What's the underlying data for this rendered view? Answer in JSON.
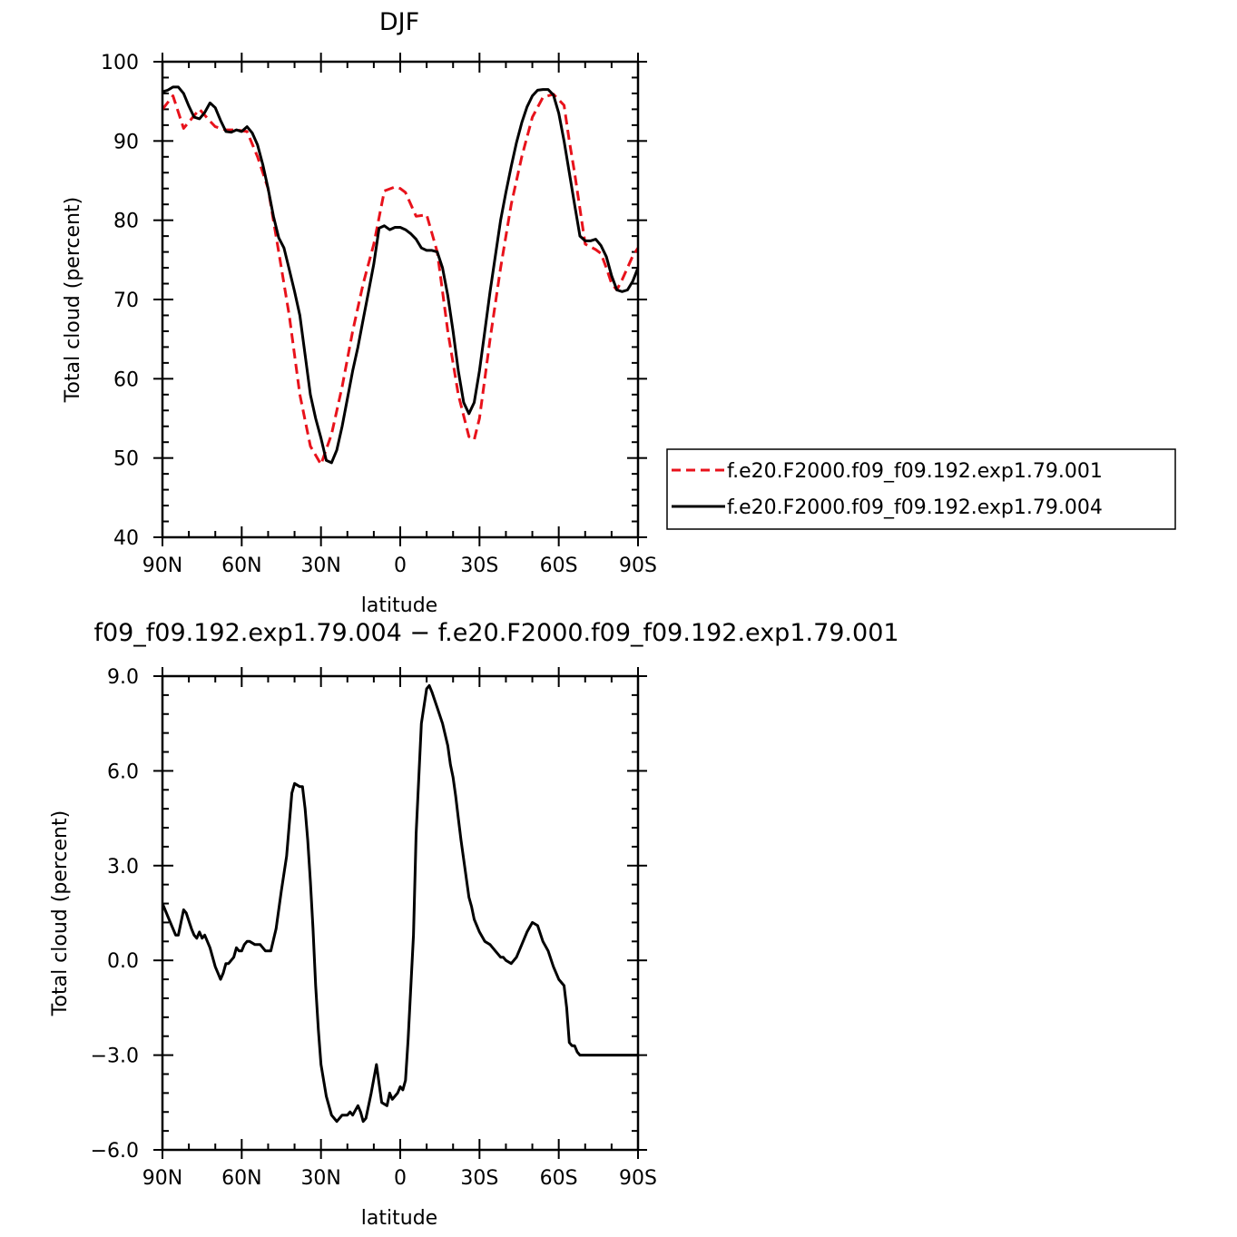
{
  "chart_data": [
    {
      "type": "line",
      "title": "DJF",
      "xlabel": "latitude",
      "ylabel": "Total cloud (percent)",
      "xlim": [
        90,
        -90
      ],
      "ylim": [
        40,
        100
      ],
      "x_ticks": [
        90,
        60,
        30,
        0,
        -30,
        -60,
        -90
      ],
      "x_tick_labels": [
        "90N",
        "60N",
        "30N",
        "0",
        "30S",
        "60S",
        "90S"
      ],
      "y_ticks": [
        40,
        50,
        60,
        70,
        80,
        90,
        100
      ],
      "y_tick_labels": [
        "40",
        "50",
        "60",
        "70",
        "80",
        "90",
        "100"
      ],
      "legend_position": "right-outside",
      "series": [
        {
          "name": "f.e20.F2000.f09_f09.192.exp1.79.001",
          "color": "#e8121b",
          "dash": "dashed",
          "x": [
            90,
            86,
            82,
            79,
            76,
            72,
            70,
            66,
            62,
            58,
            54,
            50,
            46,
            42,
            38,
            34,
            30,
            26,
            22,
            18,
            14,
            10,
            6,
            2,
            0,
            -2,
            -6,
            -10,
            -14,
            -18,
            -22,
            -26,
            -28,
            -30,
            -32,
            -34,
            -38,
            -42,
            -46,
            -50,
            -54,
            -58,
            -62,
            -64,
            -66,
            -70,
            -74,
            -76,
            -78,
            -80,
            -82,
            -84,
            -86,
            -88,
            -90
          ],
          "y": [
            94,
            95.7,
            91.6,
            92.8,
            94,
            92.5,
            91.8,
            91.4,
            91.4,
            91.2,
            88,
            84,
            76,
            68,
            58,
            51.5,
            49.2,
            53,
            59,
            66,
            72,
            77,
            83.7,
            84.2,
            84,
            83.5,
            80.5,
            80.7,
            76,
            66,
            58,
            52.7,
            52.3,
            55,
            60,
            65,
            74,
            82,
            88,
            93,
            95.5,
            95.9,
            94.5,
            90,
            86,
            77,
            76.3,
            75.8,
            74,
            72,
            71.2,
            72.5,
            74,
            75.5,
            76.5
          ]
        },
        {
          "name": "f.e20.F2000.f09_f09.192.exp1.79.004",
          "color": "#000000",
          "dash": "solid",
          "x": [
            90,
            88,
            86,
            84,
            82,
            80,
            78,
            76,
            74,
            72,
            70,
            68,
            66,
            64,
            62,
            60,
            58,
            56,
            54,
            52,
            50,
            48,
            46,
            44,
            42,
            40,
            38,
            36,
            34,
            32,
            30,
            28,
            26,
            24,
            22,
            20,
            18,
            16,
            14,
            12,
            10,
            8,
            6,
            4,
            2,
            0,
            -2,
            -4,
            -6,
            -8,
            -10,
            -12,
            -14,
            -16,
            -18,
            -20,
            -22,
            -24,
            -26,
            -28,
            -30,
            -32,
            -34,
            -36,
            -38,
            -40,
            -42,
            -44,
            -46,
            -48,
            -50,
            -52,
            -54,
            -56,
            -58,
            -60,
            -62,
            -64,
            -66,
            -68,
            -70,
            -72,
            -74,
            -76,
            -78,
            -80,
            -82,
            -84,
            -86,
            -88,
            -90
          ],
          "y": [
            96.2,
            96.4,
            96.8,
            96.8,
            96.0,
            94.4,
            93.0,
            92.8,
            93.6,
            94.8,
            94.2,
            92.6,
            91.2,
            91.1,
            91.4,
            91.2,
            91.8,
            91.0,
            89.5,
            87.0,
            84.0,
            80.5,
            77.8,
            76.5,
            73.8,
            71.0,
            68.0,
            63.0,
            58.0,
            55.0,
            52.5,
            49.7,
            49.4,
            51.0,
            54.0,
            57.5,
            61.0,
            64.0,
            67.5,
            71.0,
            74.5,
            79.0,
            79.3,
            78.8,
            79.1,
            79.1,
            78.8,
            78.3,
            77.6,
            76.5,
            76.2,
            76.2,
            76.0,
            74.0,
            70.5,
            66.0,
            61.0,
            57.0,
            55.6,
            57.0,
            61.0,
            66.0,
            71.0,
            75.5,
            80.0,
            83.5,
            86.8,
            89.8,
            92.3,
            94.3,
            95.7,
            96.4,
            96.5,
            96.5,
            95.8,
            93.5,
            90.0,
            86.0,
            82.0,
            78.0,
            77.4,
            77.4,
            77.6,
            76.8,
            75.4,
            73.0,
            71.2,
            71.0,
            71.2,
            72.3,
            74.0
          ]
        }
      ]
    },
    {
      "type": "line",
      "title": "f09_f09.192.exp1.79.004 − f.e20.F2000.f09_f09.192.exp1.79.001",
      "xlabel": "latitude",
      "ylabel": "Total cloud (percent)",
      "xlim": [
        90,
        -90
      ],
      "ylim": [
        -6,
        9
      ],
      "x_ticks": [
        90,
        60,
        30,
        0,
        -30,
        -60,
        -90
      ],
      "x_tick_labels": [
        "90N",
        "60N",
        "30N",
        "0",
        "30S",
        "60S",
        "90S"
      ],
      "y_ticks": [
        -6,
        -3,
        0,
        3,
        6,
        9
      ],
      "y_tick_labels": [
        "−6.0",
        "−3.0",
        "0.0",
        "3.0",
        "6.0",
        "9.0"
      ],
      "series": [
        {
          "color": "#000000",
          "dash": "solid",
          "x": [
            90,
            89,
            87,
            85,
            84,
            82,
            81,
            79,
            78,
            77,
            76,
            75,
            74,
            73,
            72,
            70,
            69,
            68,
            67,
            66,
            65,
            64,
            63,
            62,
            61,
            60,
            59,
            58,
            57,
            55,
            53,
            51,
            49,
            47,
            45,
            43,
            41,
            40,
            38,
            37,
            36,
            35,
            34,
            33,
            32,
            31,
            30,
            28,
            26,
            25,
            24,
            22,
            20,
            19,
            18,
            16,
            15,
            14,
            13,
            11,
            9,
            7,
            5,
            4,
            3,
            1,
            0,
            -1,
            -2,
            -3,
            -5,
            -6,
            -8,
            -10,
            -11,
            -12,
            -14,
            -16,
            -18,
            -19,
            -20,
            -21,
            -22,
            -23,
            -24,
            -25,
            -26,
            -27,
            -28,
            -30,
            -32,
            -34,
            -36,
            -38,
            -39,
            -40,
            -42,
            -44,
            -46,
            -48,
            -50,
            -52,
            -54,
            -56,
            -58,
            -60,
            -62,
            -63,
            -64,
            -65,
            -66,
            -67,
            -68,
            -69,
            -70,
            -71,
            -72,
            -73,
            -74,
            -75,
            -76,
            -77,
            -78,
            -79,
            -80,
            -81,
            -82,
            -83,
            -84,
            -85,
            -86,
            -87,
            -88,
            -89,
            -90
          ],
          "y": [
            1.8,
            1.6,
            1.2,
            0.8,
            0.8,
            1.6,
            1.5,
            1.0,
            0.8,
            0.7,
            0.9,
            0.7,
            0.8,
            0.6,
            0.4,
            -0.2,
            -0.4,
            -0.6,
            -0.4,
            -0.1,
            -0.1,
            0.0,
            0.1,
            0.4,
            0.3,
            0.3,
            0.5,
            0.6,
            0.6,
            0.5,
            0.5,
            0.3,
            0.3,
            1.0,
            2.2,
            3.3,
            5.3,
            5.6,
            5.5,
            5.5,
            4.8,
            3.8,
            2.5,
            1.0,
            -0.8,
            -2.2,
            -3.3,
            -4.3,
            -4.9,
            -5.0,
            -5.1,
            -4.9,
            -4.9,
            -4.8,
            -4.9,
            -4.6,
            -4.8,
            -5.1,
            -5.0,
            -4.2,
            -3.3,
            -4.5,
            -4.6,
            -4.2,
            -4.4,
            -4.2,
            -4.0,
            -4.1,
            -3.8,
            -2.5,
            0.8,
            4.0,
            7.5,
            8.6,
            8.7,
            8.5,
            8.0,
            7.5,
            6.8,
            6.2,
            5.8,
            5.2,
            4.5,
            3.8,
            3.2,
            2.6,
            2.0,
            1.7,
            1.3,
            0.9,
            0.6,
            0.5,
            0.3,
            0.1,
            0.1,
            0.0,
            -0.1,
            0.1,
            0.5,
            0.9,
            1.2,
            1.1,
            0.6,
            0.3,
            -0.2,
            -0.6,
            -0.8,
            -1.5,
            -2.6,
            -2.7,
            -2.7,
            -2.9,
            -3.0,
            -3.0,
            -3.0,
            -3.0,
            -3.0,
            -3.0,
            -3.0,
            -3.0,
            -3.0,
            -3.0,
            -3.0,
            -3.0,
            -3.0,
            -3.0,
            -3.0,
            -3.0,
            -3.0,
            -3.0,
            -3.0,
            -3.0,
            -3.0,
            -3.0,
            -3.0
          ]
        }
      ]
    }
  ]
}
